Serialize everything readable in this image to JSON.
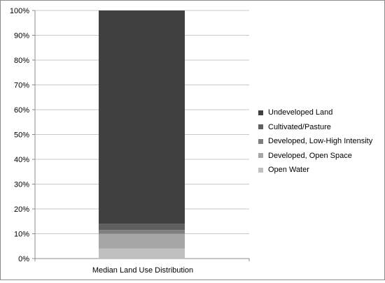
{
  "chart_data": {
    "type": "bar",
    "stacked": true,
    "categories": [
      "Median Land Use Distribution"
    ],
    "series": [
      {
        "name": "Open Water",
        "values": [
          4
        ],
        "color": "#c0c0c0"
      },
      {
        "name": "Developed, Open Space",
        "values": [
          6
        ],
        "color": "#a6a6a6"
      },
      {
        "name": "Developed, Low-High Intensity",
        "values": [
          1.5
        ],
        "color": "#7f7f7f"
      },
      {
        "name": "Cultivated/Pasture",
        "values": [
          2.5
        ],
        "color": "#5f5f5f"
      },
      {
        "name": "Undeveloped Land",
        "values": [
          86
        ],
        "color": "#404040"
      }
    ],
    "ylim": [
      0,
      100
    ],
    "yticks": [
      "0%",
      "10%",
      "20%",
      "30%",
      "40%",
      "50%",
      "60%",
      "70%",
      "80%",
      "90%",
      "100%"
    ],
    "xlabel": "",
    "ylabel": "",
    "title": "",
    "grid": true,
    "legend_position": "right",
    "legend_order": [
      "Undeveloped Land",
      "Cultivated/Pasture",
      "Developed, Low-High Intensity",
      "Developed, Open Space",
      "Open Water"
    ]
  }
}
